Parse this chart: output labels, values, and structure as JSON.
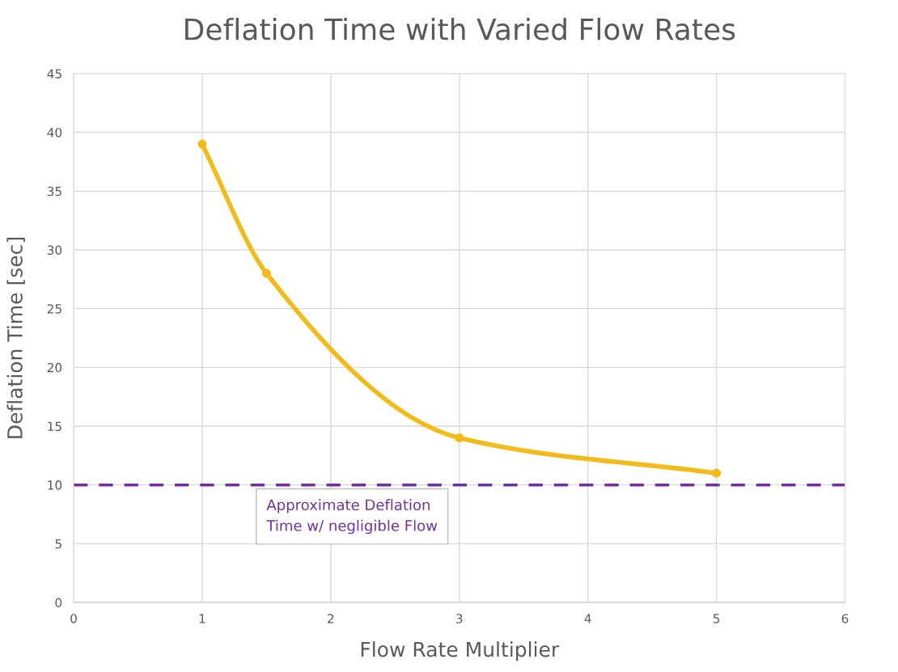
{
  "chart_data": {
    "type": "line",
    "title": "Deflation Time with Varied Flow Rates",
    "xlabel": "Flow Rate Multiplier",
    "ylabel": "Deflation Time [sec]",
    "x": [
      1,
      1.5,
      3,
      5
    ],
    "series": [
      {
        "color": "#f2bb1a",
        "values": [
          39,
          28,
          14,
          11
        ]
      }
    ],
    "xlim": [
      0,
      6
    ],
    "xticks": [
      0,
      1,
      2,
      3,
      4,
      5,
      6
    ],
    "ylim": [
      0,
      45
    ],
    "yticks": [
      0,
      5,
      10,
      15,
      20,
      25,
      30,
      35,
      40,
      45
    ],
    "grid": true,
    "marker": "circle",
    "line_style": "solid",
    "legend": false,
    "ref_lines": [
      {
        "axis": "y",
        "value": 10,
        "label": "Approximate Deflation\nTime w/ negligible Flow",
        "color": "#7030a0",
        "line_style": "dashed"
      }
    ]
  }
}
